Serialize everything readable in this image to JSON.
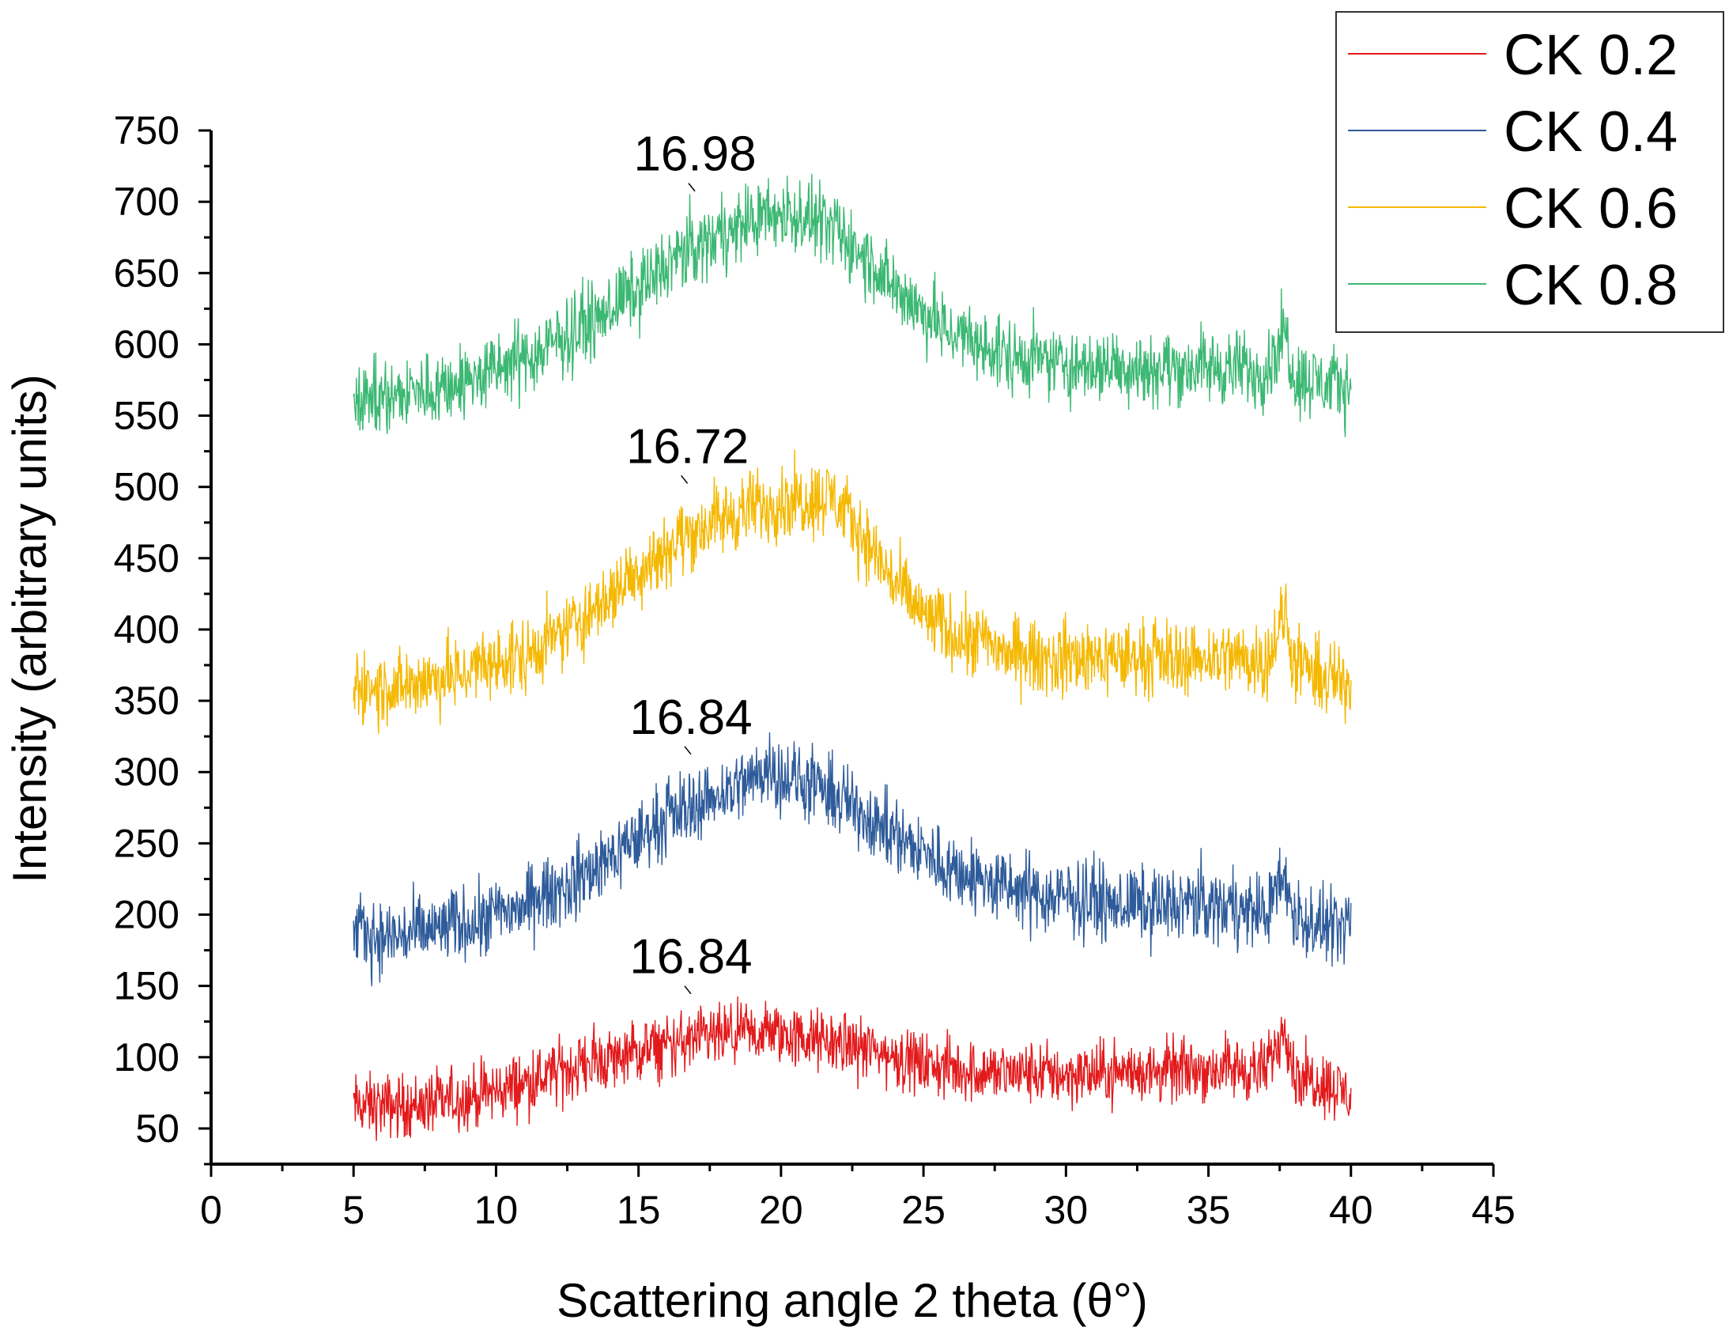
{
  "chart_data": {
    "type": "line",
    "title": "",
    "xlabel": "Scattering angle 2 theta (θ°)",
    "ylabel": "Intensity (arbitrary units)",
    "xlim": [
      0,
      45
    ],
    "ylim": [
      25,
      750
    ],
    "x_ticks": [
      0,
      5,
      10,
      15,
      20,
      25,
      30,
      35,
      40,
      45
    ],
    "y_ticks": [
      50,
      100,
      150,
      200,
      250,
      300,
      350,
      400,
      450,
      500,
      550,
      600,
      650,
      700,
      750
    ],
    "grid": false,
    "legend_position": "top-right",
    "x_range_data": [
      5,
      40
    ],
    "series": [
      {
        "name": "CK 0.2",
        "color": "#e31a1c",
        "noise": 11,
        "x": [
          5,
          6,
          7,
          8,
          9,
          10,
          11,
          12,
          13,
          14,
          15,
          16,
          17,
          18,
          19,
          19.7,
          20,
          21,
          22,
          23,
          24,
          25,
          26,
          27,
          28,
          29,
          30,
          31,
          32,
          33,
          34,
          35,
          36,
          37,
          37.7,
          38,
          39,
          40
        ],
        "y": [
          66,
          66,
          66,
          68,
          72,
          76,
          82,
          88,
          95,
          99,
          103,
          108,
          112,
          114,
          116,
          118,
          116,
          112,
          110,
          106,
          100,
          95,
          92,
          90,
          89,
          89,
          88,
          88,
          90,
          90,
          91,
          92,
          92,
          90,
          125,
          88,
          83,
          73
        ]
      },
      {
        "name": "CK 0.4",
        "color": "#2e5b9a",
        "noise": 13,
        "x": [
          5,
          6,
          7,
          8,
          9,
          10,
          11,
          12,
          13,
          14,
          15,
          16,
          17,
          18,
          19,
          19.5,
          20,
          21,
          22,
          23,
          24,
          25,
          26,
          27,
          28,
          29,
          30,
          31,
          32,
          33,
          34,
          35,
          36,
          37,
          37.7,
          38,
          39,
          40
        ],
        "y": [
          188,
          184,
          186,
          190,
          195,
          200,
          207,
          216,
          226,
          240,
          254,
          268,
          278,
          286,
          295,
          305,
          298,
          290,
          282,
          270,
          256,
          243,
          232,
          224,
          218,
          214,
          212,
          210,
          208,
          207,
          206,
          207,
          205,
          202,
          228,
          198,
          192,
          188
        ]
      },
      {
        "name": "CK 0.6",
        "color": "#f5b800",
        "noise": 13,
        "x": [
          5,
          6,
          7,
          8,
          9,
          10,
          11,
          12,
          13,
          14,
          15,
          16,
          17,
          18,
          19,
          20,
          21,
          21.8,
          22,
          23,
          24,
          25,
          26,
          27,
          28,
          29,
          30,
          31,
          32,
          33,
          34,
          35,
          36,
          37,
          37.7,
          38,
          39,
          40
        ],
        "y": [
          362,
          358,
          362,
          366,
          370,
          376,
          382,
          392,
          408,
          424,
          442,
          458,
          470,
          478,
          485,
          490,
          492,
          494,
          488,
          462,
          432,
          410,
          398,
          392,
          384,
          380,
          380,
          380,
          380,
          380,
          380,
          381,
          381,
          378,
          410,
          375,
          366,
          362
        ]
      },
      {
        "name": "CK 0.8",
        "color": "#3cb873",
        "noise": 13,
        "x": [
          5,
          6,
          7,
          8,
          9,
          10,
          11,
          12,
          13,
          14,
          15,
          16,
          17,
          18,
          19,
          20,
          21,
          22,
          23,
          24,
          25,
          26,
          27,
          28,
          29,
          30,
          31,
          32,
          33,
          34,
          35,
          36,
          37,
          37.7,
          38,
          39,
          40
        ],
        "y": [
          566,
          562,
          566,
          570,
          574,
          582,
          590,
          600,
          612,
          626,
          640,
          655,
          668,
          678,
          688,
          692,
          688,
          678,
          660,
          640,
          622,
          608,
          598,
          592,
          588,
          586,
          585,
          585,
          584,
          584,
          584,
          583,
          581,
          610,
          578,
          573,
          570
        ]
      }
    ],
    "annotations": [
      {
        "text": "16.98",
        "x": 16.98,
        "y": 703
      },
      {
        "text": "16.72",
        "x": 16.72,
        "y": 498
      },
      {
        "text": "16.84",
        "x": 16.84,
        "y": 308
      },
      {
        "text": "16.84",
        "x": 16.84,
        "y": 140
      }
    ]
  }
}
